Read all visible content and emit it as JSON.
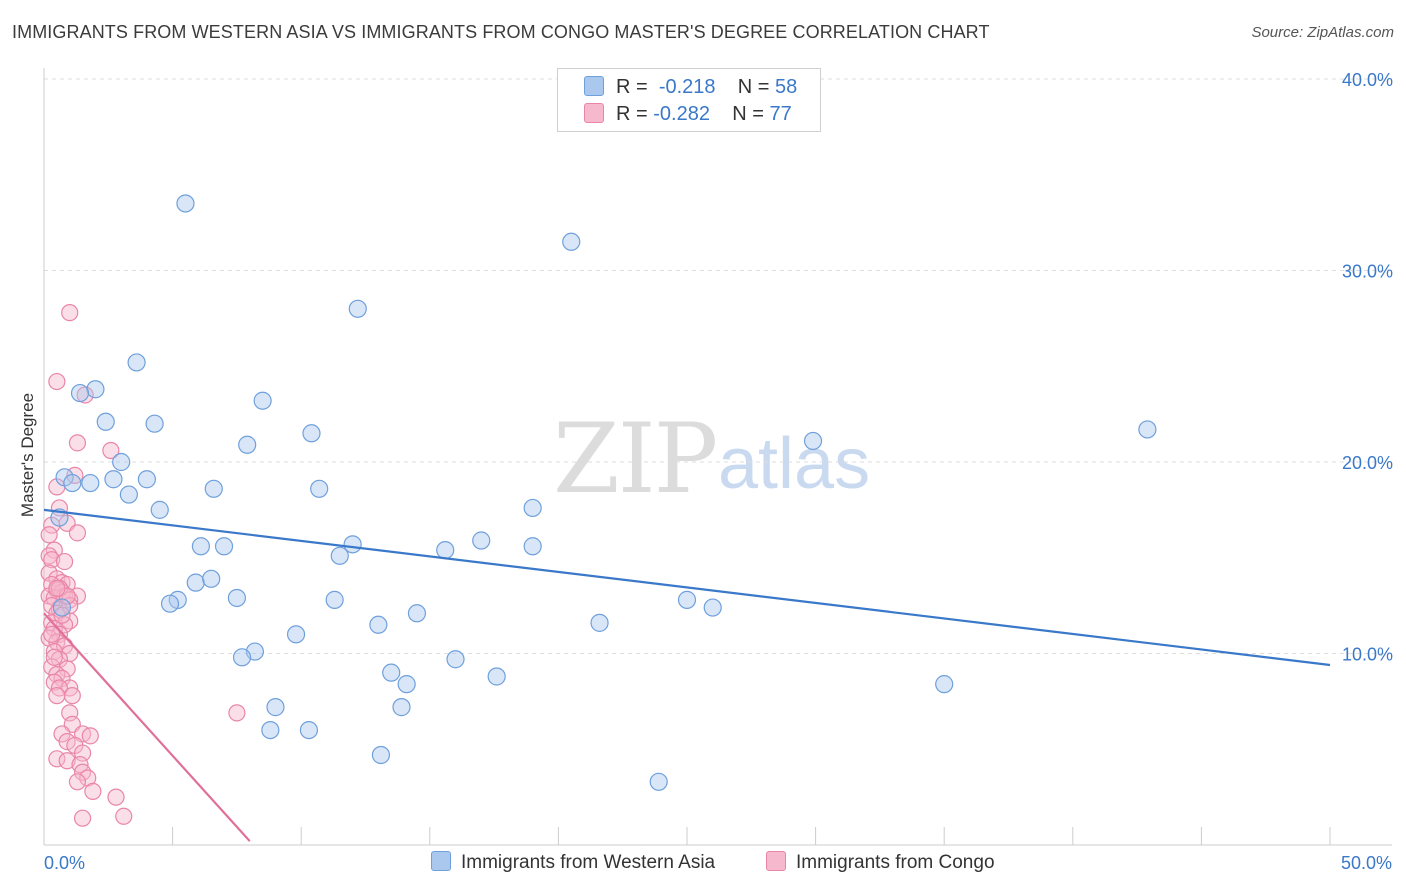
{
  "title": "IMMIGRANTS FROM WESTERN ASIA VS IMMIGRANTS FROM CONGO MASTER'S DEGREE CORRELATION CHART",
  "source": "Source: ZipAtlas.com",
  "watermark": {
    "zip": "ZIP",
    "atlas": "atlas"
  },
  "legend": {
    "blue": {
      "r_label": "R =",
      "r_value": "-0.218",
      "n_label": "N =",
      "n_value": "58"
    },
    "pink": {
      "r_label": "R =",
      "r_value": "-0.282",
      "n_label": "N =",
      "n_value": "77"
    }
  },
  "bottom_legend": {
    "blue_label": "Immigrants from Western Asia",
    "pink_label": "Immigrants from Congo"
  },
  "colors": {
    "blue_fill": "#aac8ee",
    "blue_stroke": "#6fa0dc",
    "blue_line": "#3a78c9",
    "pink_fill": "#f6b8cc",
    "pink_stroke": "#e986a8",
    "pink_line": "#e0709a",
    "grid": "#dddddd",
    "tick_text": "#3a78c9"
  },
  "chart_data": {
    "type": "scatter",
    "title": "IMMIGRANTS FROM WESTERN ASIA VS IMMIGRANTS FROM CONGO MASTER'S DEGREE CORRELATION CHART",
    "xlabel": "",
    "ylabel": "Master's Degree",
    "xlim": [
      0,
      50
    ],
    "ylim": [
      0,
      40
    ],
    "x_tick_labels": [
      {
        "value": 0,
        "label": "0.0%"
      },
      {
        "value": 50,
        "label": "50.0%"
      }
    ],
    "y_tick_labels": [
      {
        "value": 10,
        "label": "10.0%"
      },
      {
        "value": 20,
        "label": "20.0%"
      },
      {
        "value": 30,
        "label": "30.0%"
      },
      {
        "value": 40,
        "label": "40.0%"
      }
    ],
    "series": [
      {
        "name": "Immigrants from Western Asia",
        "color": "blue",
        "points": [
          [
            5.5,
            33.5
          ],
          [
            20.5,
            31.5
          ],
          [
            12.2,
            28.0
          ],
          [
            3.6,
            25.2
          ],
          [
            2.0,
            23.8
          ],
          [
            1.4,
            23.6
          ],
          [
            8.5,
            23.2
          ],
          [
            2.4,
            22.1
          ],
          [
            4.3,
            22.0
          ],
          [
            10.4,
            21.5
          ],
          [
            7.9,
            20.9
          ],
          [
            29.9,
            21.1
          ],
          [
            42.9,
            21.7
          ],
          [
            3.0,
            20.0
          ],
          [
            0.8,
            19.2
          ],
          [
            1.1,
            18.9
          ],
          [
            1.8,
            18.9
          ],
          [
            2.7,
            19.1
          ],
          [
            4.0,
            19.1
          ],
          [
            3.3,
            18.3
          ],
          [
            6.6,
            18.6
          ],
          [
            10.7,
            18.6
          ],
          [
            4.5,
            17.5
          ],
          [
            19.0,
            17.6
          ],
          [
            0.6,
            17.1
          ],
          [
            6.1,
            15.6
          ],
          [
            7.0,
            15.6
          ],
          [
            12.0,
            15.7
          ],
          [
            17.0,
            15.9
          ],
          [
            15.6,
            15.4
          ],
          [
            19.0,
            15.6
          ],
          [
            11.5,
            15.1
          ],
          [
            5.9,
            13.7
          ],
          [
            6.5,
            13.9
          ],
          [
            7.5,
            12.9
          ],
          [
            5.2,
            12.8
          ],
          [
            4.9,
            12.6
          ],
          [
            11.3,
            12.8
          ],
          [
            25.0,
            12.8
          ],
          [
            26.0,
            12.4
          ],
          [
            14.5,
            12.1
          ],
          [
            21.6,
            11.6
          ],
          [
            13.0,
            11.5
          ],
          [
            9.8,
            11.0
          ],
          [
            8.2,
            10.1
          ],
          [
            7.7,
            9.8
          ],
          [
            16.0,
            9.7
          ],
          [
            13.5,
            9.0
          ],
          [
            14.1,
            8.4
          ],
          [
            17.6,
            8.8
          ],
          [
            35.0,
            8.4
          ],
          [
            9.0,
            7.2
          ],
          [
            13.9,
            7.2
          ],
          [
            8.8,
            6.0
          ],
          [
            10.3,
            6.0
          ],
          [
            13.1,
            4.7
          ],
          [
            23.9,
            3.3
          ],
          [
            0.7,
            12.4
          ]
        ],
        "trend": {
          "x0": 0,
          "y0": 17.5,
          "x1": 50,
          "y1": 9.4
        }
      },
      {
        "name": "Immigrants from Congo",
        "color": "pink",
        "points": [
          [
            1.0,
            27.8
          ],
          [
            0.5,
            24.2
          ],
          [
            1.6,
            23.5
          ],
          [
            1.3,
            21.0
          ],
          [
            2.6,
            20.6
          ],
          [
            1.2,
            19.3
          ],
          [
            0.5,
            18.7
          ],
          [
            0.6,
            17.6
          ],
          [
            0.9,
            16.8
          ],
          [
            0.3,
            16.7
          ],
          [
            1.3,
            16.3
          ],
          [
            0.4,
            15.4
          ],
          [
            0.2,
            15.1
          ],
          [
            0.3,
            14.9
          ],
          [
            0.8,
            14.8
          ],
          [
            0.2,
            14.2
          ],
          [
            0.5,
            13.9
          ],
          [
            0.7,
            13.7
          ],
          [
            0.3,
            13.6
          ],
          [
            0.9,
            13.6
          ],
          [
            0.5,
            13.3
          ],
          [
            0.7,
            13.2
          ],
          [
            0.2,
            13.0
          ],
          [
            1.3,
            13.0
          ],
          [
            0.8,
            13.0
          ],
          [
            0.4,
            12.9
          ],
          [
            1.0,
            12.8
          ],
          [
            0.3,
            12.5
          ],
          [
            0.6,
            12.3
          ],
          [
            0.5,
            12.1
          ],
          [
            1.0,
            11.7
          ],
          [
            0.3,
            11.6
          ],
          [
            0.8,
            11.5
          ],
          [
            0.4,
            11.3
          ],
          [
            0.6,
            11.0
          ],
          [
            0.2,
            10.8
          ],
          [
            0.5,
            10.6
          ],
          [
            0.8,
            10.4
          ],
          [
            0.4,
            10.1
          ],
          [
            1.0,
            10.0
          ],
          [
            0.6,
            9.7
          ],
          [
            0.3,
            9.3
          ],
          [
            0.9,
            9.2
          ],
          [
            0.5,
            8.9
          ],
          [
            0.7,
            8.7
          ],
          [
            0.4,
            8.5
          ],
          [
            1.0,
            8.2
          ],
          [
            0.6,
            8.2
          ],
          [
            1.1,
            7.8
          ],
          [
            0.5,
            7.8
          ],
          [
            1.0,
            6.9
          ],
          [
            7.5,
            6.9
          ],
          [
            1.1,
            6.3
          ],
          [
            0.7,
            5.8
          ],
          [
            1.5,
            5.8
          ],
          [
            1.8,
            5.7
          ],
          [
            0.9,
            5.4
          ],
          [
            1.2,
            5.2
          ],
          [
            1.5,
            4.8
          ],
          [
            0.5,
            4.5
          ],
          [
            0.9,
            4.4
          ],
          [
            1.4,
            4.2
          ],
          [
            1.5,
            3.8
          ],
          [
            1.7,
            3.5
          ],
          [
            1.3,
            3.3
          ],
          [
            1.9,
            2.8
          ],
          [
            2.8,
            2.5
          ],
          [
            3.1,
            1.5
          ],
          [
            1.5,
            1.4
          ],
          [
            0.6,
            13.4
          ],
          [
            0.2,
            16.2
          ],
          [
            0.4,
            9.8
          ],
          [
            1.0,
            12.5
          ],
          [
            0.7,
            12.0
          ],
          [
            0.3,
            11.0
          ],
          [
            0.9,
            13.0
          ],
          [
            0.5,
            13.4
          ]
        ],
        "trend": {
          "x0": 0,
          "y0": 12.1,
          "x1": 8.0,
          "y1": 0.2
        }
      }
    ]
  }
}
